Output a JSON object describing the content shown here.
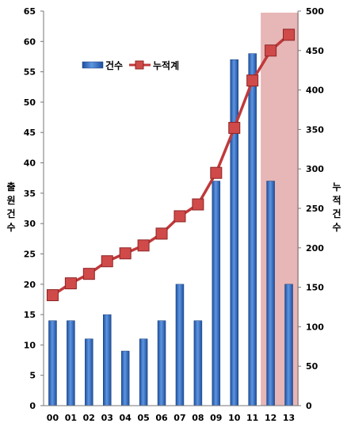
{
  "chart_data": {
    "type": "bar",
    "categories": [
      "00",
      "01",
      "02",
      "03",
      "04",
      "05",
      "06",
      "07",
      "08",
      "09",
      "10",
      "11",
      "12",
      "13"
    ],
    "series": [
      {
        "name": "건수",
        "type": "bar",
        "axis": "left",
        "color": "#3f73c4",
        "values": [
          14,
          14,
          11,
          15,
          9,
          11,
          14,
          20,
          14,
          37,
          57,
          58,
          37,
          20
        ]
      },
      {
        "name": "누적계",
        "type": "line",
        "axis": "right",
        "color": "#c0393b",
        "values": [
          140,
          155,
          167,
          183,
          193,
          203,
          218,
          240,
          255,
          295,
          352,
          412,
          450,
          470
        ]
      }
    ],
    "ylabel": "출원건수",
    "y2label": "누적건수",
    "ylim": [
      0,
      65
    ],
    "y2lim": [
      0,
      500
    ],
    "yticks": [
      0,
      5,
      10,
      15,
      20,
      25,
      30,
      35,
      40,
      45,
      50,
      55,
      60,
      65
    ],
    "y2ticks": [
      0,
      50,
      100,
      150,
      200,
      250,
      300,
      350,
      400,
      450,
      500
    ],
    "highlight_categories": [
      "12",
      "13"
    ],
    "highlight_color": "#e3a9a9",
    "grid": false,
    "legend_position": "top-left"
  }
}
